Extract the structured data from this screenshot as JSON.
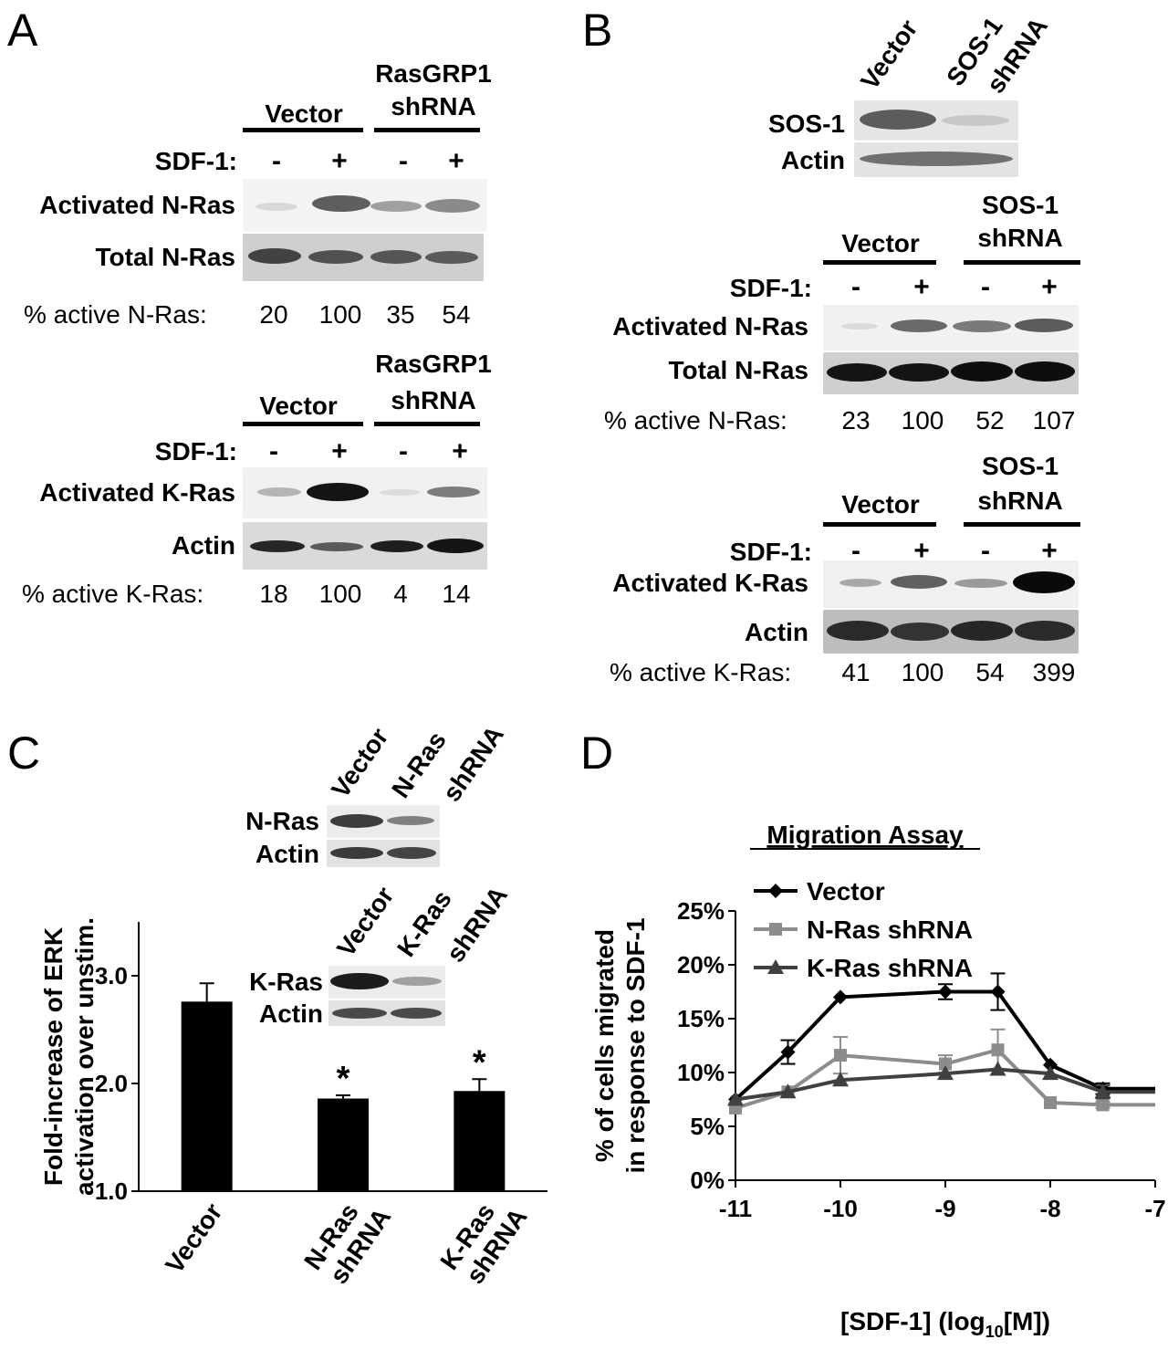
{
  "panels": {
    "a": "A",
    "b": "B",
    "c": "C",
    "d": "D"
  },
  "panel_a": {
    "nras": {
      "group_vector": "Vector",
      "group_shrna_1": "RasGRP1",
      "group_shrna_2": "shRNA",
      "sdf_label": "SDF-1:",
      "signs": [
        "-",
        "+",
        "-",
        "+"
      ],
      "row1": "Activated N-Ras",
      "row2": "Total N-Ras",
      "pct_label": "% active N-Ras:",
      "values": [
        "20",
        "100",
        "35",
        "54"
      ]
    },
    "kras": {
      "group_vector": "Vector",
      "group_shrna_1": "RasGRP1",
      "group_shrna_2": "shRNA",
      "sdf_label": "SDF-1:",
      "signs": [
        "-",
        "+",
        "-",
        "+"
      ],
      "row1": "Activated K-Ras",
      "row2": "Actin",
      "pct_label": "% active K-Ras:",
      "values": [
        "18",
        "100",
        "4",
        "14"
      ]
    }
  },
  "panel_b": {
    "header_vector": "Vector",
    "header_sos_1": "SOS-1",
    "header_sos_2": "shRNA",
    "top_row1": "SOS-1",
    "top_row2": "Actin",
    "nras": {
      "group_vector": "Vector",
      "group_shrna_1": "SOS-1",
      "group_shrna_2": "shRNA",
      "sdf_label": "SDF-1:",
      "signs": [
        "-",
        "+",
        "-",
        "+"
      ],
      "row1": "Activated N-Ras",
      "row2": "Total N-Ras",
      "pct_label": "% active N-Ras:",
      "values": [
        "23",
        "100",
        "52",
        "107"
      ]
    },
    "kras": {
      "group_vector": "Vector",
      "group_shrna_1": "SOS-1",
      "group_shrna_2": "shRNA",
      "sdf_label": "SDF-1:",
      "signs": [
        "-",
        "+",
        "-",
        "+"
      ],
      "row1": "Activated K-Ras",
      "row2": "Actin",
      "pct_label": "% active K-Ras:",
      "values": [
        "41",
        "100",
        "54",
        "399"
      ]
    }
  },
  "panel_c": {
    "blot1_header_vector": "Vector",
    "blot1_header_shrna_1": "N-Ras",
    "blot1_header_shrna_2": "shRNA",
    "blot1_row1": "N-Ras",
    "blot1_row2": "Actin",
    "blot2_header_vector": "Vector",
    "blot2_header_shrna_1": "K-Ras",
    "blot2_header_shrna_2": "shRNA",
    "blot2_row1": "K-Ras",
    "blot2_row2": "Actin"
  },
  "chart_data": [
    {
      "type": "bar",
      "panel": "C",
      "ylabel_line1": "Fold-increase of ERK",
      "ylabel_line2": "activation over unstim.",
      "ylim": [
        1.0,
        3.5
      ],
      "yticks": [
        "1.0",
        "2.0",
        "3.0"
      ],
      "categories": [
        {
          "line1": "Vector",
          "line2": ""
        },
        {
          "line1": "N-Ras",
          "line2": "shRNA"
        },
        {
          "line1": "K-Ras",
          "line2": "shRNA"
        }
      ],
      "values": [
        2.76,
        1.86,
        1.93
      ],
      "errors": [
        0.17,
        0.03,
        0.11
      ],
      "annotations": [
        "",
        "*",
        "*"
      ],
      "bar_color": "#000000"
    },
    {
      "type": "line",
      "panel": "D",
      "title": "Migration Assay",
      "xlabel_pre": "[SDF-1] (log",
      "xlabel_sub": "10",
      "xlabel_post": "[M])",
      "ylabel_line1": "% of cells migrated",
      "ylabel_line2": "in response to SDF-1",
      "xlim": [
        -11,
        -7
      ],
      "ylim": [
        0,
        25
      ],
      "xticks": [
        "-11",
        "-10",
        "-9",
        "-8",
        "-7"
      ],
      "yticks": [
        "0%",
        "5%",
        "10%",
        "15%",
        "20%",
        "25%"
      ],
      "legend_position": "top-left",
      "series": [
        {
          "name": "Vector",
          "color": "#000000",
          "marker": "diamond",
          "x": [
            -11,
            -10.5,
            -10,
            -9,
            -8.5,
            -8,
            -7.5,
            -7
          ],
          "y": [
            7.5,
            11.9,
            17.0,
            17.5,
            17.5,
            10.7,
            8.5,
            8.5
          ],
          "err": [
            0,
            1.1,
            0,
            0.7,
            1.7,
            0,
            0.5,
            0
          ]
        },
        {
          "name": "N-Ras shRNA",
          "color": "#8c8c8c",
          "marker": "square",
          "x": [
            -11,
            -10.5,
            -10,
            -9,
            -8.5,
            -8,
            -7.5,
            -7
          ],
          "y": [
            6.7,
            8.2,
            11.6,
            10.8,
            12.1,
            7.2,
            7.0,
            7.0
          ],
          "err": [
            0,
            0,
            1.7,
            0.8,
            1.9,
            0,
            0.3,
            0
          ]
        },
        {
          "name": "K-Ras shRNA",
          "color": "#404040",
          "marker": "triangle",
          "x": [
            -11,
            -10.5,
            -10,
            -9,
            -8.5,
            -8,
            -7.5,
            -7
          ],
          "y": [
            7.5,
            8.2,
            9.3,
            9.9,
            10.3,
            9.9,
            8.2,
            8.2
          ],
          "err": [
            0,
            0,
            0,
            0,
            0,
            0,
            0.6,
            0
          ]
        }
      ]
    }
  ]
}
